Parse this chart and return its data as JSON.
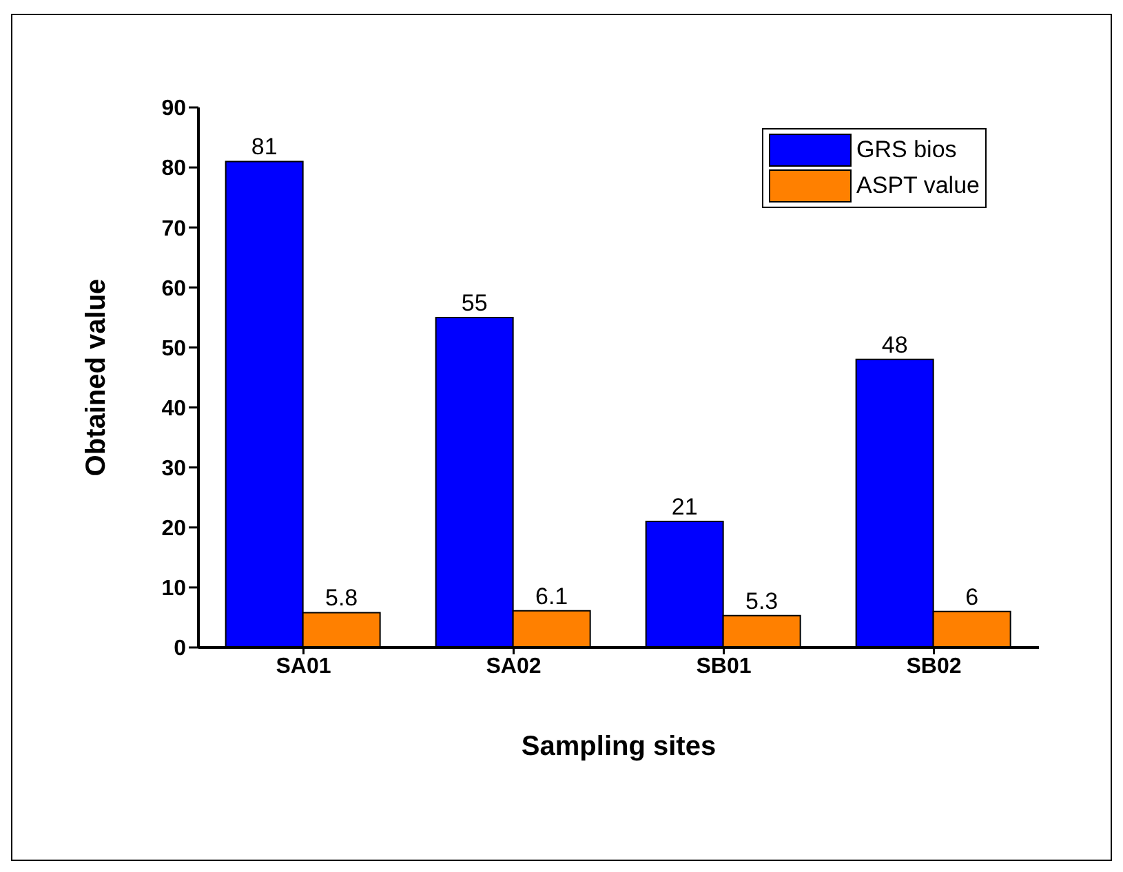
{
  "chart_data": {
    "type": "bar",
    "xlabel": "Sampling sites",
    "ylabel": "Obtained value",
    "categories": [
      "SA01",
      "SA02",
      "SB01",
      "SB02"
    ],
    "series": [
      {
        "name": "GRS bios",
        "color": "#0000ff",
        "values": [
          81,
          55,
          21,
          48
        ]
      },
      {
        "name": "ASPT value",
        "color": "#ff8000",
        "values": [
          5.8,
          6.1,
          5.3,
          6
        ]
      }
    ],
    "ylim": [
      0,
      90
    ],
    "yticks": [
      0,
      10,
      20,
      30,
      40,
      50,
      60,
      70,
      80,
      90
    ],
    "data_labels": true,
    "grid": false,
    "legend": "top right"
  }
}
